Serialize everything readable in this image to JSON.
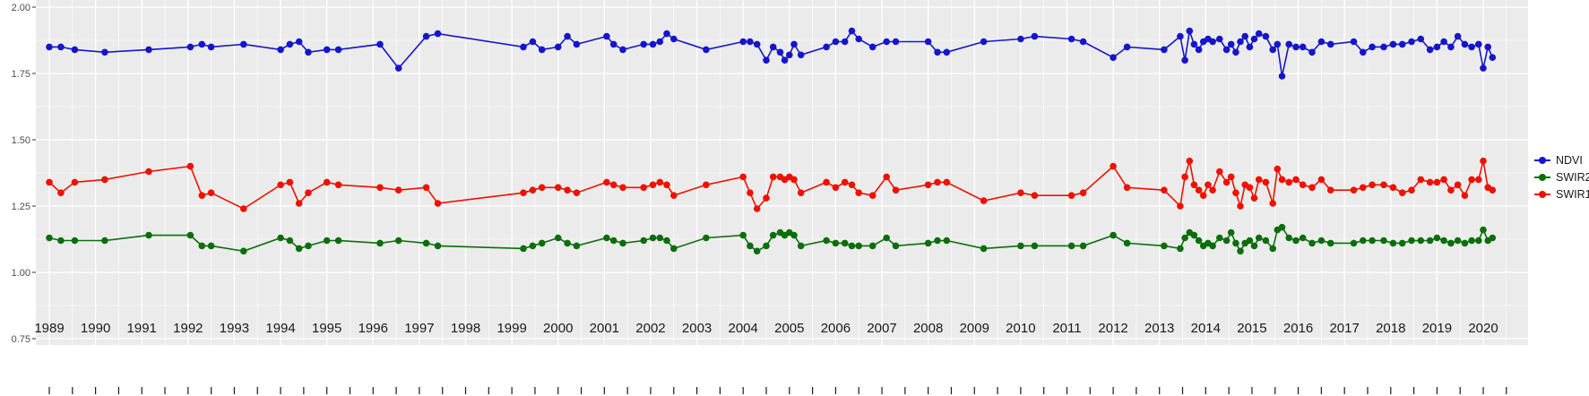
{
  "chart_data": {
    "type": "line",
    "title": "",
    "xlabel": "",
    "ylabel": "",
    "grid": true,
    "panel_bg": "#EBEBEB",
    "gridline_color": "#FFFFFF",
    "axis_text_color": "#4D4D4D",
    "x_label_color": "#1A1A1A",
    "legend_position": "right",
    "ylim": [
      0.58,
      2.03
    ],
    "xlim": [
      1988.7,
      2020.7
    ],
    "y_ticks": [
      2.0,
      1.75,
      1.5,
      1.25,
      1.0,
      0.75
    ],
    "y_tick_labels": [
      "2.00",
      "1.75",
      "1.50",
      "1.25",
      "1.00",
      "0.75"
    ],
    "x_ticks": [
      1989,
      1990,
      1991,
      1992,
      1993,
      1994,
      1995,
      1996,
      1997,
      1998,
      1999,
      2000,
      2001,
      2002,
      2003,
      2004,
      2005,
      2006,
      2007,
      2008,
      2009,
      2010,
      2011,
      2012,
      2013,
      2014,
      2015,
      2016,
      2017,
      2018,
      2019,
      2020
    ],
    "x_tick_labels": [
      "1989",
      "1990",
      "1991",
      "1992",
      "1993",
      "1994",
      "1995",
      "1996",
      "1997",
      "1998",
      "1999",
      "2000",
      "2001",
      "2002",
      "2003",
      "2004",
      "2005",
      "2006",
      "2007",
      "2008",
      "2009",
      "2010",
      "2011",
      "2012",
      "2013",
      "2014",
      "2015",
      "2016",
      "2017",
      "2018",
      "2019",
      "2020"
    ],
    "legend_order": [
      "NDVI",
      "SWIR2",
      "SWIR1"
    ],
    "x": [
      1989.0,
      1989.25,
      1989.55,
      1990.2,
      1991.15,
      1992.05,
      1992.3,
      1992.5,
      1993.2,
      1994.0,
      1994.2,
      1994.4,
      1994.6,
      1995.0,
      1995.25,
      1996.15,
      1996.55,
      1997.15,
      1997.4,
      1999.25,
      1999.45,
      1999.65,
      2000.0,
      2000.2,
      2000.4,
      2001.05,
      2001.2,
      2001.4,
      2001.85,
      2002.05,
      2002.2,
      2002.35,
      2002.5,
      2003.2,
      2004.0,
      2004.15,
      2004.3,
      2004.5,
      2004.65,
      2004.8,
      2004.9,
      2005.0,
      2005.1,
      2005.25,
      2005.8,
      2006.0,
      2006.2,
      2006.35,
      2006.5,
      2006.8,
      2007.1,
      2007.3,
      2008.0,
      2008.2,
      2008.4,
      2009.2,
      2010.0,
      2010.3,
      2011.1,
      2011.35,
      2012.0,
      2012.3,
      2013.1,
      2013.45,
      2013.55,
      2013.65,
      2013.75,
      2013.85,
      2013.95,
      2014.05,
      2014.15,
      2014.3,
      2014.45,
      2014.55,
      2014.65,
      2014.75,
      2014.85,
      2014.95,
      2015.05,
      2015.15,
      2015.3,
      2015.45,
      2015.55,
      2015.65,
      2015.8,
      2015.95,
      2016.1,
      2016.3,
      2016.5,
      2016.7,
      2017.2,
      2017.4,
      2017.6,
      2017.85,
      2018.05,
      2018.25,
      2018.45,
      2018.65,
      2018.85,
      2019.0,
      2019.15,
      2019.3,
      2019.45,
      2019.6,
      2019.75,
      2019.9,
      2020.0,
      2020.1,
      2020.2
    ],
    "series": [
      {
        "name": "NDVI",
        "color": "#1515CC",
        "values": [
          1.85,
          1.85,
          1.84,
          1.83,
          1.84,
          1.85,
          1.86,
          1.85,
          1.86,
          1.84,
          1.86,
          1.87,
          1.83,
          1.84,
          1.84,
          1.86,
          1.77,
          1.89,
          1.9,
          1.85,
          1.87,
          1.84,
          1.85,
          1.89,
          1.86,
          1.89,
          1.86,
          1.84,
          1.86,
          1.86,
          1.87,
          1.9,
          1.88,
          1.84,
          1.87,
          1.87,
          1.86,
          1.8,
          1.85,
          1.83,
          1.8,
          1.82,
          1.86,
          1.82,
          1.85,
          1.87,
          1.87,
          1.91,
          1.88,
          1.85,
          1.87,
          1.87,
          1.87,
          1.83,
          1.83,
          1.87,
          1.88,
          1.89,
          1.88,
          1.87,
          1.81,
          1.85,
          1.84,
          1.89,
          1.8,
          1.91,
          1.86,
          1.84,
          1.87,
          1.88,
          1.87,
          1.88,
          1.84,
          1.86,
          1.83,
          1.87,
          1.89,
          1.85,
          1.88,
          1.9,
          1.89,
          1.84,
          1.86,
          1.74,
          1.86,
          1.85,
          1.85,
          1.83,
          1.87,
          1.86,
          1.87,
          1.83,
          1.85,
          1.85,
          1.86,
          1.86,
          1.87,
          1.88,
          1.84,
          1.85,
          1.87,
          1.85,
          1.89,
          1.86,
          1.85,
          1.86,
          1.77,
          1.85,
          1.81
        ]
      },
      {
        "name": "SWIR2",
        "color": "#0B6E0B",
        "values": [
          1.13,
          1.12,
          1.12,
          1.12,
          1.14,
          1.14,
          1.1,
          1.1,
          1.08,
          1.13,
          1.12,
          1.09,
          1.1,
          1.12,
          1.12,
          1.11,
          1.12,
          1.11,
          1.1,
          1.09,
          1.1,
          1.11,
          1.13,
          1.11,
          1.1,
          1.13,
          1.12,
          1.11,
          1.12,
          1.13,
          1.13,
          1.12,
          1.09,
          1.13,
          1.14,
          1.1,
          1.08,
          1.1,
          1.14,
          1.15,
          1.14,
          1.15,
          1.14,
          1.1,
          1.12,
          1.11,
          1.11,
          1.1,
          1.1,
          1.1,
          1.13,
          1.1,
          1.11,
          1.12,
          1.12,
          1.09,
          1.1,
          1.1,
          1.1,
          1.1,
          1.14,
          1.11,
          1.1,
          1.09,
          1.13,
          1.15,
          1.14,
          1.12,
          1.1,
          1.11,
          1.1,
          1.13,
          1.12,
          1.15,
          1.11,
          1.08,
          1.11,
          1.12,
          1.1,
          1.13,
          1.12,
          1.09,
          1.16,
          1.17,
          1.13,
          1.12,
          1.13,
          1.11,
          1.12,
          1.11,
          1.11,
          1.12,
          1.12,
          1.12,
          1.11,
          1.11,
          1.12,
          1.12,
          1.12,
          1.13,
          1.12,
          1.11,
          1.12,
          1.11,
          1.12,
          1.12,
          1.16,
          1.12,
          1.13
        ]
      },
      {
        "name": "SWIR1",
        "color": "#EE1100",
        "values": [
          1.34,
          1.3,
          1.34,
          1.35,
          1.38,
          1.4,
          1.29,
          1.3,
          1.24,
          1.33,
          1.34,
          1.26,
          1.3,
          1.34,
          1.33,
          1.32,
          1.31,
          1.32,
          1.26,
          1.3,
          1.31,
          1.32,
          1.32,
          1.31,
          1.3,
          1.34,
          1.33,
          1.32,
          1.32,
          1.33,
          1.34,
          1.33,
          1.29,
          1.33,
          1.36,
          1.3,
          1.24,
          1.28,
          1.36,
          1.36,
          1.35,
          1.36,
          1.35,
          1.3,
          1.34,
          1.32,
          1.34,
          1.33,
          1.3,
          1.29,
          1.36,
          1.31,
          1.33,
          1.34,
          1.34,
          1.27,
          1.3,
          1.29,
          1.29,
          1.3,
          1.4,
          1.32,
          1.31,
          1.25,
          1.36,
          1.42,
          1.33,
          1.31,
          1.29,
          1.33,
          1.31,
          1.38,
          1.34,
          1.36,
          1.3,
          1.25,
          1.33,
          1.32,
          1.28,
          1.35,
          1.34,
          1.26,
          1.39,
          1.35,
          1.34,
          1.35,
          1.33,
          1.32,
          1.35,
          1.31,
          1.31,
          1.32,
          1.33,
          1.33,
          1.32,
          1.3,
          1.31,
          1.35,
          1.34,
          1.34,
          1.35,
          1.31,
          1.33,
          1.29,
          1.35,
          1.35,
          1.42,
          1.32,
          1.31
        ]
      }
    ]
  }
}
